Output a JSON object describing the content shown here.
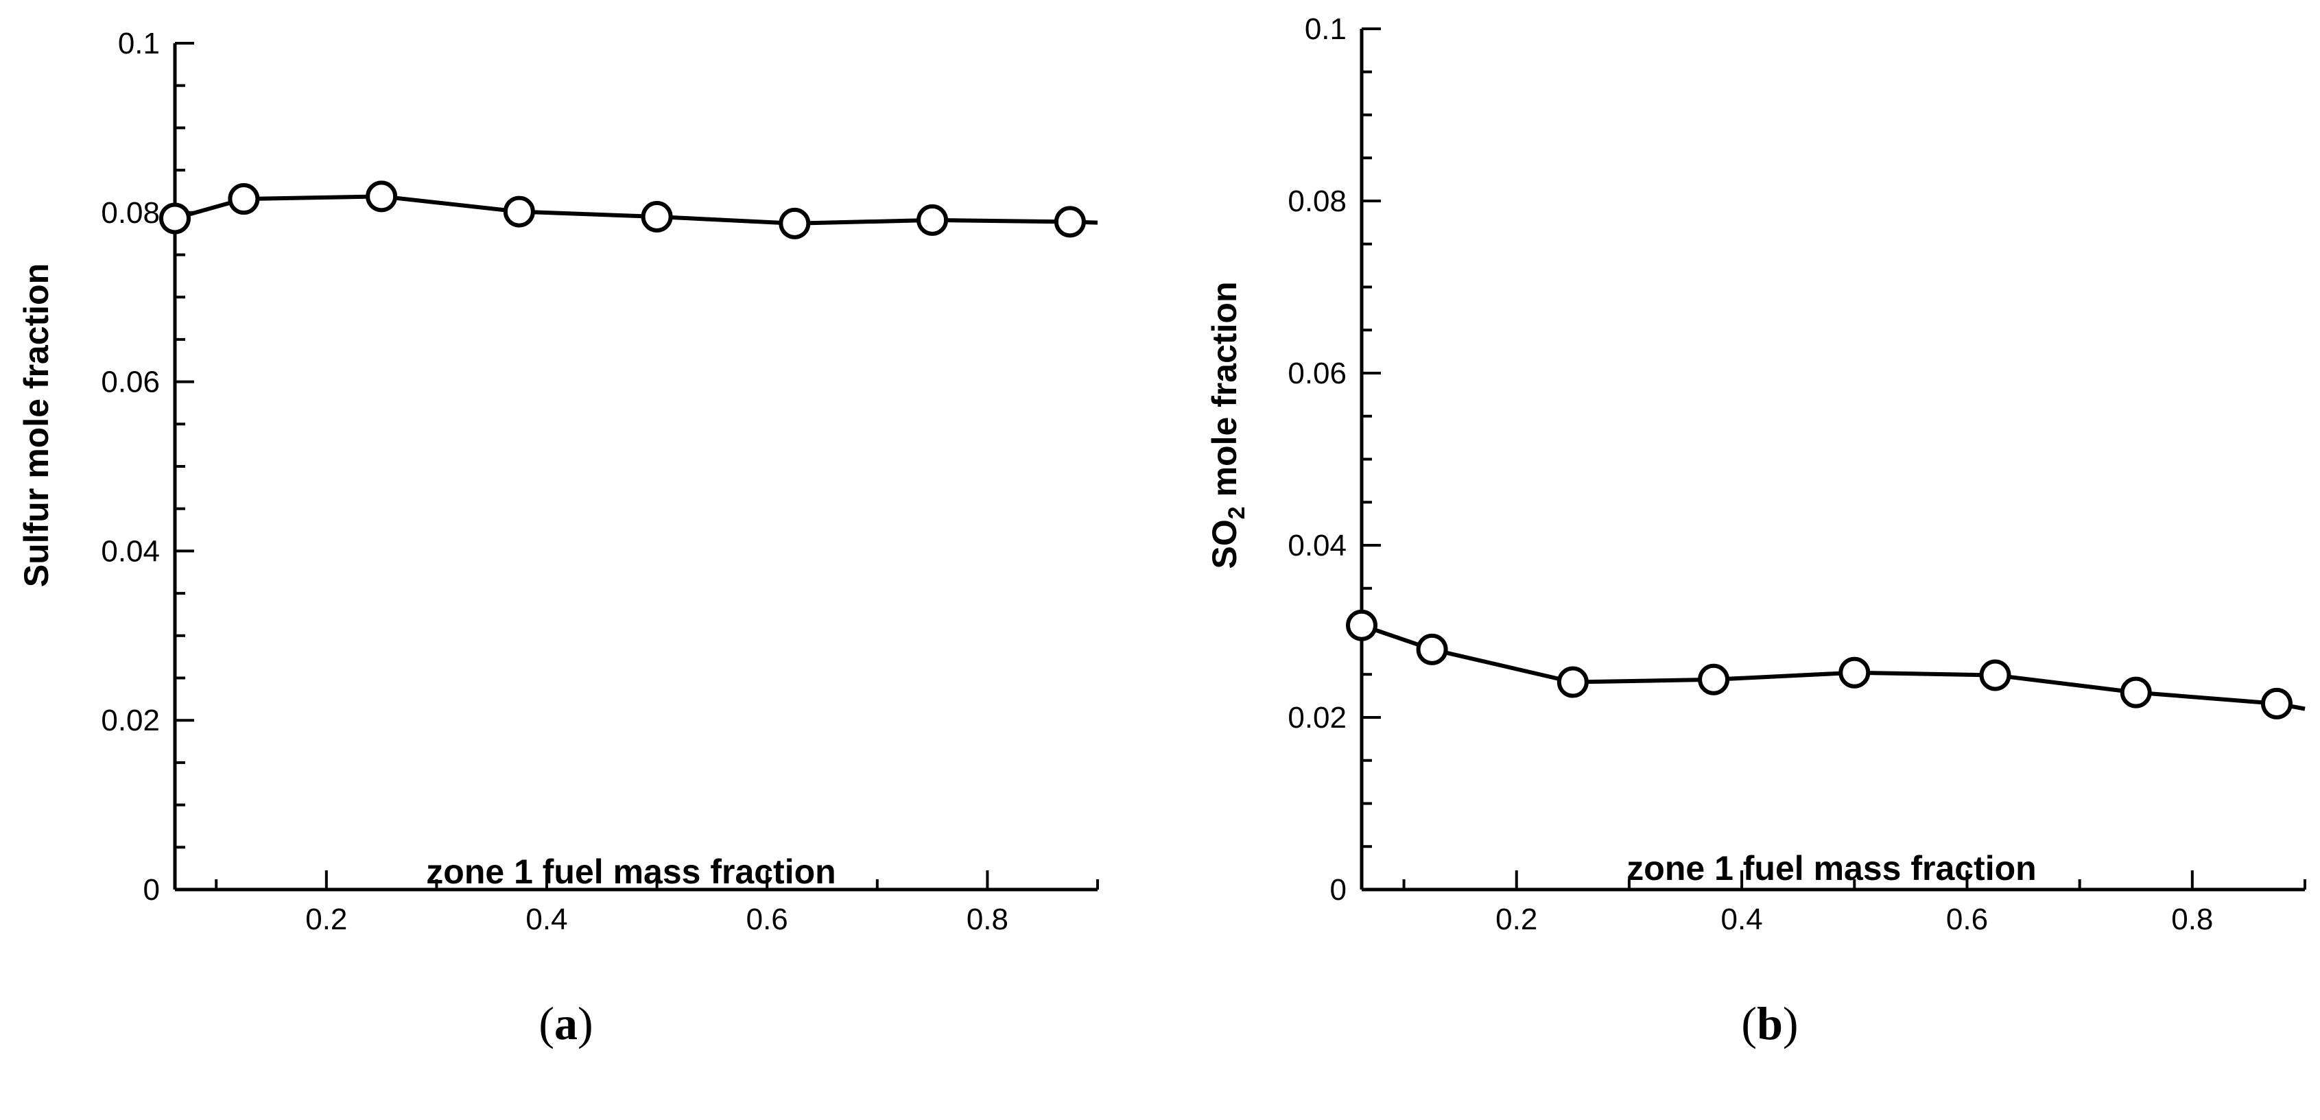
{
  "chart_data": [
    {
      "type": "line",
      "panel_label": "a",
      "xlabel": "zone 1 fuel mass fraction",
      "ylabel": "Sulfur mole fraction",
      "xlim": [
        0.0625,
        0.9
      ],
      "ylim": [
        0,
        0.1
      ],
      "x_ticks": [
        0.2,
        0.4,
        0.6,
        0.8
      ],
      "x_tick_labels": [
        "0.2",
        "0.4",
        "0.6",
        "0.8"
      ],
      "x_minor_ticks": [
        0.1,
        0.3,
        0.5,
        0.7,
        0.9
      ],
      "y_ticks": [
        0,
        0.02,
        0.04,
        0.06,
        0.08,
        0.1
      ],
      "y_tick_labels": [
        "0",
        "0.02",
        "0.04",
        "0.06",
        "0.08",
        "0.1"
      ],
      "y_minor_ticks": [
        0.005,
        0.01,
        0.015,
        0.025,
        0.03,
        0.035,
        0.045,
        0.05,
        0.055,
        0.065,
        0.07,
        0.075,
        0.085,
        0.09,
        0.095
      ],
      "grid": false,
      "series": [
        {
          "name": "Sulfur",
          "x": [
            0.0625,
            0.125,
            0.25,
            0.375,
            0.5,
            0.625,
            0.75,
            0.875
          ],
          "values": [
            0.0793,
            0.0816,
            0.0819,
            0.0801,
            0.0795,
            0.0787,
            0.0791,
            0.0789
          ],
          "line_end_x": 0.9,
          "line_end_value": 0.0788
        }
      ]
    },
    {
      "type": "line",
      "panel_label": "b",
      "xlabel": "zone 1 fuel mass fraction",
      "ylabel_main": "SO",
      "ylabel_sub": "2",
      "ylabel_rest": " mole fraction",
      "xlim": [
        0.0625,
        0.9
      ],
      "ylim": [
        0,
        0.1
      ],
      "x_ticks": [
        0.2,
        0.4,
        0.6,
        0.8
      ],
      "x_tick_labels": [
        "0.2",
        "0.4",
        "0.6",
        "0.8"
      ],
      "x_minor_ticks": [
        0.1,
        0.3,
        0.5,
        0.7,
        0.9
      ],
      "y_ticks": [
        0,
        0.02,
        0.04,
        0.06,
        0.08,
        0.1
      ],
      "y_tick_labels": [
        "0",
        "0.02",
        "0.04",
        "0.06",
        "0.08",
        "0.1"
      ],
      "y_minor_ticks": [
        0.005,
        0.01,
        0.015,
        0.025,
        0.03,
        0.035,
        0.045,
        0.05,
        0.055,
        0.065,
        0.07,
        0.075,
        0.085,
        0.09,
        0.095
      ],
      "grid": false,
      "series": [
        {
          "name": "SO2",
          "x": [
            0.0625,
            0.125,
            0.25,
            0.375,
            0.5,
            0.625,
            0.75,
            0.875
          ],
          "values": [
            0.0307,
            0.0279,
            0.0241,
            0.0244,
            0.0252,
            0.0249,
            0.0229,
            0.0216
          ],
          "line_end_x": 0.9,
          "line_end_value": 0.021
        }
      ]
    }
  ]
}
